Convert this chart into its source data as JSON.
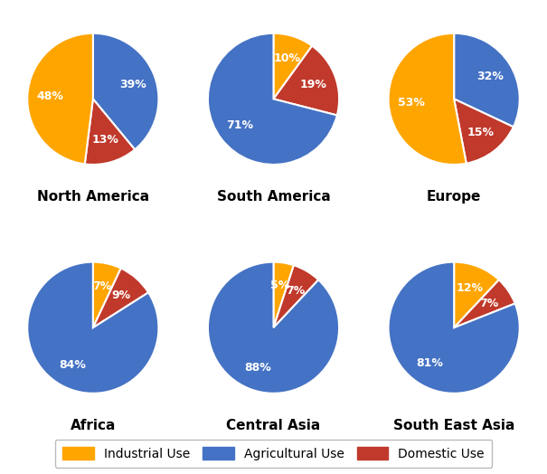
{
  "regions": [
    "North America",
    "South America",
    "Europe",
    "Africa",
    "Central Asia",
    "South East Asia"
  ],
  "categories": [
    "Industrial Use",
    "Agricultural Use",
    "Domestic Use"
  ],
  "colors": {
    "industrial": "#FFA500",
    "agricultural": "#4472C4",
    "domestic": "#C0392B"
  },
  "data": {
    "North America": {
      "industrial": 48,
      "agricultural": 39,
      "domestic": 13
    },
    "South America": {
      "industrial": 10,
      "agricultural": 71,
      "domestic": 19
    },
    "Europe": {
      "industrial": 53,
      "agricultural": 32,
      "domestic": 15
    },
    "Africa": {
      "industrial": 7,
      "agricultural": 84,
      "domestic": 9
    },
    "Central Asia": {
      "industrial": 5,
      "agricultural": 88,
      "domestic": 7
    },
    "South East Asia": {
      "industrial": 12,
      "agricultural": 81,
      "domestic": 7
    }
  },
  "startangles": {
    "North America": 90,
    "South America": 90,
    "Europe": 90,
    "Africa": 90,
    "Central Asia": 90,
    "South East Asia": 90
  },
  "background_color": "#FFFFFF",
  "title_fontsize": 11,
  "legend_fontsize": 10,
  "pct_fontsize": 9
}
